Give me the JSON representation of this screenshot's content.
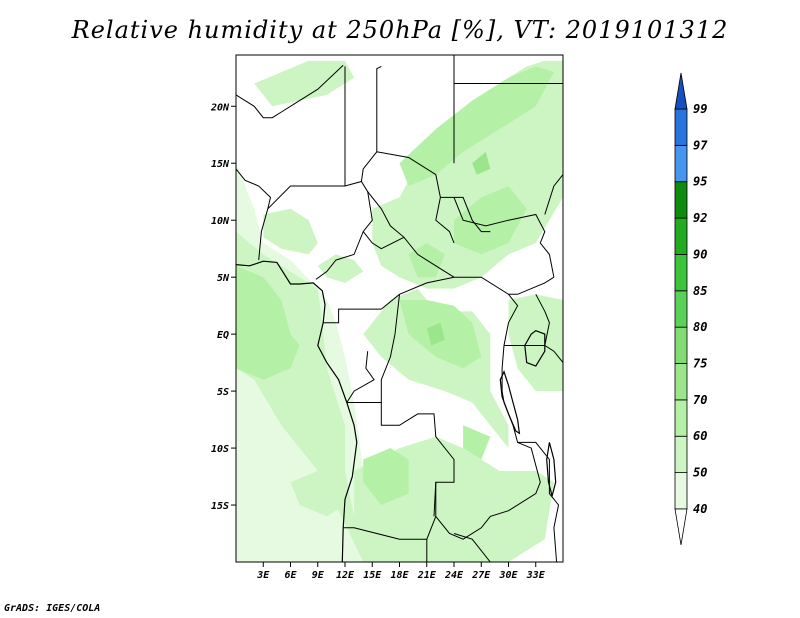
{
  "title": "Relative humidity at 250hPa [%], VT: 2019101312",
  "credit": "GrADS: IGES/COLA",
  "map": {
    "lon_range": [
      0,
      36
    ],
    "lat_range": [
      -20,
      24.5
    ],
    "lon_ticks": [
      {
        "value": 3,
        "label": "3E"
      },
      {
        "value": 6,
        "label": "6E"
      },
      {
        "value": 9,
        "label": "9E"
      },
      {
        "value": 12,
        "label": "12E"
      },
      {
        "value": 15,
        "label": "15E"
      },
      {
        "value": 18,
        "label": "18E"
      },
      {
        "value": 21,
        "label": "21E"
      },
      {
        "value": 24,
        "label": "24E"
      },
      {
        "value": 27,
        "label": "27E"
      },
      {
        "value": 30,
        "label": "30E"
      },
      {
        "value": 33,
        "label": "33E"
      }
    ],
    "lat_ticks": [
      {
        "value": 20,
        "label": "20N"
      },
      {
        "value": 15,
        "label": "15N"
      },
      {
        "value": 10,
        "label": "10N"
      },
      {
        "value": 5,
        "label": "5N"
      },
      {
        "value": 0,
        "label": "EQ"
      },
      {
        "value": -5,
        "label": "5S"
      },
      {
        "value": -10,
        "label": "10S"
      },
      {
        "value": -15,
        "label": "15S"
      }
    ]
  },
  "colorbar": {
    "levels": [
      "40",
      "50",
      "60",
      "70",
      "75",
      "80",
      "85",
      "90",
      "92",
      "95",
      "97",
      "99"
    ],
    "colors": [
      "#e6fae1",
      "#cdf5c3",
      "#b4f0a5",
      "#9be68c",
      "#82dc73",
      "#5ad25a",
      "#3cc33c",
      "#23aa23",
      "#0f8c0f",
      "#4696f0",
      "#2873dc",
      "#1450be"
    ],
    "under_color": "#ffffff"
  },
  "humidity_regions": [
    {
      "level": "40",
      "lonlat": [
        [
          0,
          15
        ],
        [
          2,
          11
        ],
        [
          3,
          8
        ],
        [
          6,
          6.5
        ],
        [
          9,
          4
        ],
        [
          10,
          3
        ],
        [
          11,
          1
        ],
        [
          12,
          -2
        ],
        [
          13,
          -6
        ],
        [
          14,
          -12
        ],
        [
          15,
          -18
        ],
        [
          16,
          -20
        ],
        [
          0,
          -20
        ]
      ]
    },
    {
      "level": "50",
      "lonlat": [
        [
          0,
          9
        ],
        [
          3,
          7
        ],
        [
          6,
          5.5
        ],
        [
          9,
          4
        ],
        [
          9.5,
          1
        ],
        [
          10,
          -3
        ],
        [
          12,
          -8
        ],
        [
          12,
          -12
        ],
        [
          13,
          -16
        ],
        [
          15,
          -20
        ],
        [
          14,
          -20
        ],
        [
          11,
          -15
        ],
        [
          9,
          -12
        ],
        [
          5,
          -8
        ],
        [
          2,
          -4
        ],
        [
          0,
          -3
        ]
      ]
    },
    {
      "level": "50",
      "lonlat": [
        [
          9,
          -12
        ],
        [
          11,
          -11
        ],
        [
          12,
          -15
        ],
        [
          10,
          -16
        ],
        [
          7,
          -15
        ],
        [
          6,
          -13
        ]
      ]
    },
    {
      "level": "50",
      "lonlat": [
        [
          13,
          -12
        ],
        [
          18,
          -10
        ],
        [
          22,
          -9
        ],
        [
          25,
          -10
        ],
        [
          29,
          -12
        ],
        [
          33,
          -12
        ],
        [
          35,
          -13
        ],
        [
          34,
          -18
        ],
        [
          30,
          -20
        ],
        [
          14,
          -20
        ],
        [
          13,
          -16
        ]
      ]
    },
    {
      "level": "50",
      "lonlat": [
        [
          14,
          0
        ],
        [
          16,
          -2
        ],
        [
          19,
          -4
        ],
        [
          23,
          -5
        ],
        [
          26,
          -6
        ],
        [
          28,
          -8
        ],
        [
          30,
          -10
        ],
        [
          30,
          -8
        ],
        [
          28,
          -5
        ],
        [
          28,
          0
        ],
        [
          26,
          2
        ],
        [
          22,
          2
        ],
        [
          20,
          4
        ],
        [
          17,
          3
        ]
      ]
    },
    {
      "level": "50",
      "lonlat": [
        [
          18,
          12
        ],
        [
          20,
          15
        ],
        [
          23,
          18
        ],
        [
          26,
          20
        ],
        [
          29,
          22
        ],
        [
          32,
          23.5
        ],
        [
          34,
          24
        ],
        [
          36,
          24
        ],
        [
          36,
          12
        ],
        [
          33,
          8
        ],
        [
          30,
          7
        ],
        [
          27,
          5
        ],
        [
          24,
          4
        ],
        [
          21,
          4
        ],
        [
          18,
          5
        ],
        [
          16,
          6
        ],
        [
          15,
          8
        ],
        [
          15,
          11
        ]
      ]
    },
    {
      "level": "50",
      "lonlat": [
        [
          3,
          10.5
        ],
        [
          6,
          11
        ],
        [
          8,
          10
        ],
        [
          9,
          8
        ],
        [
          8,
          7
        ],
        [
          5,
          7.5
        ],
        [
          3,
          8.5
        ]
      ]
    },
    {
      "level": "50",
      "lonlat": [
        [
          9,
          6
        ],
        [
          11,
          7
        ],
        [
          13,
          6.5
        ],
        [
          14,
          5.5
        ],
        [
          12,
          4.5
        ],
        [
          10,
          5
        ]
      ]
    },
    {
      "level": "50",
      "lonlat": [
        [
          2,
          22
        ],
        [
          5,
          23
        ],
        [
          8,
          24
        ],
        [
          12,
          24
        ],
        [
          13,
          22.5
        ],
        [
          10,
          21
        ],
        [
          7,
          20.5
        ],
        [
          4,
          20
        ]
      ]
    },
    {
      "level": "50",
      "lonlat": [
        [
          30,
          3
        ],
        [
          33,
          3.5
        ],
        [
          36,
          3
        ],
        [
          36,
          -5
        ],
        [
          33,
          -5
        ],
        [
          31,
          -3
        ],
        [
          30,
          0
        ]
      ]
    },
    {
      "level": "60",
      "lonlat": [
        [
          0,
          6
        ],
        [
          3,
          5
        ],
        [
          5,
          3
        ],
        [
          6,
          0
        ],
        [
          7,
          -1
        ],
        [
          6,
          -3
        ],
        [
          3,
          -4
        ],
        [
          0,
          -3
        ]
      ]
    },
    {
      "level": "60",
      "lonlat": [
        [
          18,
          15
        ],
        [
          22,
          18
        ],
        [
          26,
          20.5
        ],
        [
          30,
          22.5
        ],
        [
          33,
          23.5
        ],
        [
          35,
          23
        ],
        [
          33,
          20
        ],
        [
          29,
          18
        ],
        [
          25,
          16
        ],
        [
          22,
          14
        ],
        [
          19,
          13
        ]
      ]
    },
    {
      "level": "60",
      "lonlat": [
        [
          24,
          10
        ],
        [
          27,
          12
        ],
        [
          30,
          13
        ],
        [
          32,
          11
        ],
        [
          30,
          8
        ],
        [
          27,
          7
        ],
        [
          24,
          8
        ]
      ]
    },
    {
      "level": "60",
      "lonlat": [
        [
          19,
          7
        ],
        [
          21,
          8
        ],
        [
          23,
          7
        ],
        [
          22,
          5
        ],
        [
          20,
          5
        ]
      ]
    },
    {
      "level": "60",
      "lonlat": [
        [
          18,
          3
        ],
        [
          21,
          3
        ],
        [
          24,
          2.5
        ],
        [
          26,
          1
        ],
        [
          27,
          -2
        ],
        [
          25,
          -3
        ],
        [
          22,
          -2
        ],
        [
          19,
          0
        ]
      ]
    },
    {
      "level": "60",
      "lonlat": [
        [
          14,
          -11
        ],
        [
          17,
          -10
        ],
        [
          19,
          -11
        ],
        [
          19,
          -14
        ],
        [
          16,
          -15
        ],
        [
          14,
          -13
        ]
      ]
    },
    {
      "level": "60",
      "lonlat": [
        [
          25,
          -8
        ],
        [
          28,
          -9
        ],
        [
          27,
          -11
        ],
        [
          25,
          -10
        ]
      ]
    },
    {
      "level": "70",
      "lonlat": [
        [
          21,
          0.5
        ],
        [
          22.5,
          1
        ],
        [
          23,
          -0.5
        ],
        [
          21.5,
          -1
        ]
      ]
    },
    {
      "level": "70",
      "lonlat": [
        [
          26,
          15
        ],
        [
          27.5,
          16
        ],
        [
          28,
          14.5
        ],
        [
          26.5,
          14
        ]
      ]
    }
  ],
  "coastline": [
    [
      0,
      6.1
    ],
    [
      1.5,
      6
    ],
    [
      3,
      6.4
    ],
    [
      4.5,
      6.3
    ],
    [
      6,
      4.4
    ],
    [
      7,
      4.4
    ],
    [
      8.5,
      4.5
    ],
    [
      9.5,
      3.8
    ],
    [
      9.8,
      2.6
    ],
    [
      9.6,
      1
    ],
    [
      9.3,
      0
    ],
    [
      9,
      -1
    ],
    [
      10,
      -2.5
    ],
    [
      11.3,
      -4
    ],
    [
      12.2,
      -6
    ],
    [
      13,
      -8
    ],
    [
      13.3,
      -9.5
    ],
    [
      12.8,
      -12.5
    ],
    [
      12,
      -14.5
    ],
    [
      11.8,
      -17
    ],
    [
      11.7,
      -20
    ]
  ],
  "borders": [
    [
      [
        9.6,
        1
      ],
      [
        11.3,
        1
      ],
      [
        11.3,
        2.2
      ],
      [
        16,
        2.2
      ]
    ],
    [
      [
        14.5,
        -1.5
      ],
      [
        14.3,
        -3
      ],
      [
        15.2,
        -4
      ],
      [
        13,
        -5
      ],
      [
        12.2,
        -6
      ]
    ],
    [
      [
        16,
        2.2
      ],
      [
        18,
        3.5
      ],
      [
        21,
        4.5
      ],
      [
        24,
        5
      ],
      [
        27,
        5
      ],
      [
        30,
        3.5
      ],
      [
        31,
        3.5
      ],
      [
        34,
        4.5
      ],
      [
        35,
        5
      ]
    ],
    [
      [
        18,
        3.5
      ],
      [
        17.5,
        0
      ],
      [
        17,
        -2
      ],
      [
        16,
        -4
      ],
      [
        16,
        -6
      ],
      [
        13,
        -6
      ],
      [
        12.2,
        -6
      ]
    ],
    [
      [
        30,
        3.5
      ],
      [
        31,
        2.5
      ],
      [
        30,
        1
      ],
      [
        29.5,
        -1
      ],
      [
        29.3,
        -3
      ],
      [
        29.3,
        -5
      ],
      [
        29.5,
        -6
      ],
      [
        30.5,
        -8
      ],
      [
        31,
        -9.5
      ],
      [
        33,
        -9.5
      ],
      [
        34.5,
        -11
      ],
      [
        34.5,
        -14
      ],
      [
        35.5,
        -15
      ],
      [
        35,
        -17
      ],
      [
        35.3,
        -20
      ]
    ],
    [
      [
        16,
        -6
      ],
      [
        16,
        -8
      ],
      [
        18,
        -8
      ],
      [
        20,
        -7
      ],
      [
        21.8,
        -7
      ],
      [
        22,
        -9
      ],
      [
        24,
        -11
      ],
      [
        24,
        -13
      ],
      [
        22,
        -13
      ],
      [
        22,
        -16
      ],
      [
        23.5,
        -17.5
      ],
      [
        25,
        -18
      ],
      [
        27,
        -17
      ],
      [
        28,
        -16
      ],
      [
        30,
        -15.5
      ],
      [
        33,
        -14
      ],
      [
        33.5,
        -13
      ],
      [
        32.5,
        -10
      ],
      [
        31,
        -9.5
      ]
    ],
    [
      [
        22,
        -16
      ],
      [
        21,
        -18
      ],
      [
        18,
        -18
      ],
      [
        13,
        -17
      ],
      [
        11.8,
        -17
      ]
    ],
    [
      [
        21,
        -18
      ],
      [
        21,
        -20
      ]
    ],
    [
      [
        24,
        -17.5
      ],
      [
        26,
        -18
      ],
      [
        28,
        -20
      ]
    ],
    [
      [
        2.5,
        6.5
      ],
      [
        2.8,
        9
      ],
      [
        3.5,
        11
      ],
      [
        3.8,
        12
      ],
      [
        2.5,
        13
      ],
      [
        1,
        13.5
      ],
      [
        0,
        14.5
      ]
    ],
    [
      [
        3.5,
        11
      ],
      [
        6,
        13
      ],
      [
        9,
        13
      ],
      [
        12,
        13
      ],
      [
        13.8,
        13.4
      ],
      [
        14.5,
        12.5
      ],
      [
        15,
        10
      ],
      [
        14,
        9
      ],
      [
        13,
        7
      ],
      [
        11,
        6.5
      ],
      [
        10,
        5.5
      ],
      [
        8.8,
        4.8
      ]
    ],
    [
      [
        13.8,
        13.4
      ],
      [
        14,
        14.5
      ],
      [
        15.5,
        16
      ],
      [
        15.5,
        20
      ],
      [
        15.5,
        23.3
      ],
      [
        16,
        23.5
      ]
    ],
    [
      [
        12,
        13
      ],
      [
        12,
        23.5
      ]
    ],
    [
      [
        11.8,
        23.6
      ],
      [
        9,
        21.5
      ],
      [
        7,
        20.5
      ],
      [
        5,
        19.5
      ],
      [
        4,
        19
      ],
      [
        3,
        19
      ],
      [
        2,
        20
      ],
      [
        0,
        21
      ]
    ],
    [
      [
        14.5,
        12.5
      ],
      [
        16,
        11
      ],
      [
        17,
        9.5
      ],
      [
        18.5,
        8.5
      ],
      [
        20,
        7
      ],
      [
        22,
        6
      ],
      [
        24,
        5
      ]
    ],
    [
      [
        14,
        9
      ],
      [
        15,
        8
      ],
      [
        16,
        7.5
      ],
      [
        18.5,
        8.5
      ]
    ],
    [
      [
        15.5,
        16
      ],
      [
        19,
        15.5
      ],
      [
        22,
        14
      ],
      [
        22.5,
        12
      ],
      [
        22,
        10
      ],
      [
        23.5,
        9
      ],
      [
        24,
        8
      ]
    ],
    [
      [
        22.5,
        12
      ],
      [
        25,
        12
      ],
      [
        26,
        10
      ],
      [
        27,
        9
      ],
      [
        28,
        9
      ]
    ],
    [
      [
        24,
        20
      ],
      [
        24,
        22
      ],
      [
        25,
        22
      ]
    ],
    [
      [
        24,
        22
      ],
      [
        36,
        22
      ]
    ],
    [
      [
        24,
        24.5
      ],
      [
        24,
        20
      ],
      [
        24,
        15
      ],
      [
        24,
        22
      ]
    ],
    [
      [
        24,
        12
      ],
      [
        25,
        10
      ],
      [
        27.5,
        9.5
      ],
      [
        30,
        10
      ],
      [
        33,
        10.5
      ],
      [
        34,
        9
      ],
      [
        33.5,
        8
      ],
      [
        34.5,
        7
      ],
      [
        35,
        5
      ]
    ],
    [
      [
        34,
        10.5
      ],
      [
        35,
        13
      ],
      [
        36,
        14
      ]
    ],
    [
      [
        22,
        -13
      ],
      [
        21.8,
        -16
      ]
    ],
    [
      [
        33,
        3.5
      ],
      [
        34,
        2
      ],
      [
        34.5,
        1
      ],
      [
        34,
        -1
      ],
      [
        33.5,
        -1
      ]
    ],
    [
      [
        29.5,
        -1
      ],
      [
        30.5,
        -1
      ],
      [
        32,
        -1
      ],
      [
        34,
        -1
      ],
      [
        35,
        -1.5
      ],
      [
        36,
        -2.5
      ]
    ]
  ],
  "lakes": [
    [
      [
        33,
        0.3
      ],
      [
        34,
        0
      ],
      [
        34,
        -1.5
      ],
      [
        33,
        -2.8
      ],
      [
        32,
        -2.5
      ],
      [
        31.8,
        -1
      ],
      [
        32.5,
        0
      ]
    ],
    [
      [
        29.5,
        -3.3
      ],
      [
        30,
        -4.5
      ],
      [
        30.5,
        -6
      ],
      [
        31,
        -7.5
      ],
      [
        31.2,
        -8.7
      ],
      [
        30.8,
        -8.5
      ],
      [
        30,
        -7
      ],
      [
        29.3,
        -5.5
      ],
      [
        29.1,
        -4
      ]
    ],
    [
      [
        34.5,
        -9.5
      ],
      [
        35,
        -11
      ],
      [
        35.2,
        -13
      ],
      [
        34.8,
        -14.2
      ],
      [
        34.4,
        -13
      ],
      [
        34.2,
        -11
      ]
    ]
  ]
}
